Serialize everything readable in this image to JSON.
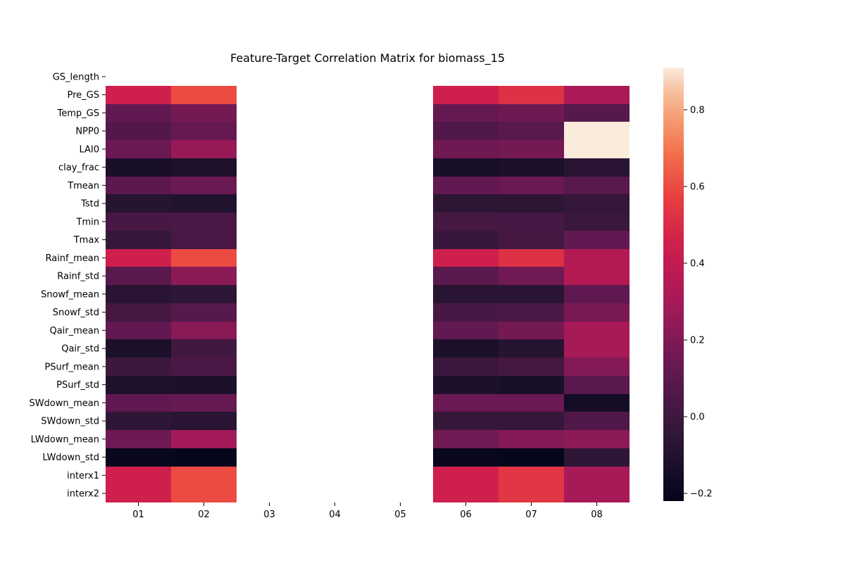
{
  "chart_data": {
    "type": "heatmap",
    "title": "Feature-Target Correlation Matrix for biomass_15",
    "xlabel": "",
    "ylabel": "",
    "x_categories": [
      "01",
      "02",
      "03",
      "04",
      "05",
      "06",
      "07",
      "08"
    ],
    "y_categories": [
      "GS_length",
      "Pre_GS",
      "Temp_GS",
      "NPP0",
      "LAI0",
      "clay_frac",
      "Tmean",
      "Tstd",
      "Tmin",
      "Tmax",
      "Rainf_mean",
      "Rainf_std",
      "Snowf_mean",
      "Snowf_std",
      "Qair_mean",
      "Qair_std",
      "PSurf_mean",
      "PSurf_std",
      "SWdown_mean",
      "SWdown_std",
      "LWdown_mean",
      "LWdown_std",
      "interx1",
      "interx2"
    ],
    "values": [
      [
        null,
        null,
        null,
        null,
        null,
        null,
        null,
        null
      ],
      [
        0.45,
        0.6,
        null,
        null,
        null,
        0.45,
        0.52,
        0.32
      ],
      [
        0.12,
        0.17,
        null,
        null,
        null,
        0.13,
        0.15,
        0.08
      ],
      [
        0.07,
        0.13,
        null,
        null,
        null,
        0.06,
        0.09,
        0.91
      ],
      [
        0.14,
        0.26,
        null,
        null,
        null,
        0.15,
        0.17,
        0.91
      ],
      [
        -0.13,
        -0.11,
        null,
        null,
        null,
        -0.13,
        -0.12,
        -0.07
      ],
      [
        0.1,
        0.14,
        null,
        null,
        null,
        0.12,
        0.14,
        0.09
      ],
      [
        -0.08,
        -0.1,
        null,
        null,
        null,
        -0.06,
        -0.06,
        -0.03
      ],
      [
        0.03,
        0.04,
        null,
        null,
        null,
        0.02,
        0.03,
        -0.01
      ],
      [
        -0.03,
        0.04,
        null,
        null,
        null,
        -0.02,
        0.02,
        0.12
      ],
      [
        0.45,
        0.6,
        null,
        null,
        null,
        0.45,
        0.52,
        0.35
      ],
      [
        0.09,
        0.23,
        null,
        null,
        null,
        0.09,
        0.16,
        0.35
      ],
      [
        -0.07,
        -0.05,
        null,
        null,
        null,
        -0.07,
        -0.07,
        0.11
      ],
      [
        0.02,
        0.08,
        null,
        null,
        null,
        0.03,
        0.04,
        0.18
      ],
      [
        0.12,
        0.22,
        null,
        null,
        null,
        0.12,
        0.17,
        0.3
      ],
      [
        -0.12,
        0.01,
        null,
        null,
        null,
        -0.12,
        -0.08,
        0.3
      ],
      [
        0.0,
        0.04,
        null,
        null,
        null,
        -0.01,
        0.02,
        0.21
      ],
      [
        -0.11,
        -0.12,
        null,
        null,
        null,
        -0.12,
        -0.13,
        0.09
      ],
      [
        0.11,
        0.13,
        null,
        null,
        null,
        0.14,
        0.14,
        -0.15
      ],
      [
        -0.05,
        -0.07,
        null,
        null,
        null,
        -0.03,
        -0.03,
        0.06
      ],
      [
        0.15,
        0.29,
        null,
        null,
        null,
        0.16,
        0.21,
        0.23
      ],
      [
        -0.2,
        -0.21,
        null,
        null,
        null,
        -0.2,
        -0.21,
        -0.05
      ],
      [
        0.45,
        0.6,
        null,
        null,
        null,
        0.45,
        0.54,
        0.31
      ],
      [
        0.45,
        0.6,
        null,
        null,
        null,
        0.45,
        0.54,
        0.31
      ]
    ],
    "colorbar": {
      "min": -0.22,
      "max": 0.91,
      "ticks": [
        -0.2,
        0.0,
        0.2,
        0.4,
        0.6,
        0.8
      ],
      "tick_labels": [
        "−0.2",
        "0.0",
        "0.2",
        "0.4",
        "0.6",
        "0.8"
      ],
      "colormap": "rocket"
    },
    "legend": "colorbar-right",
    "grid": false
  }
}
